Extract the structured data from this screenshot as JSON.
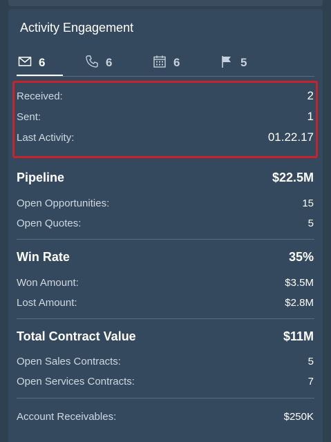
{
  "card": {
    "title": "Activity Engagement",
    "tabs": [
      {
        "icon": "envelope-icon",
        "count": "6"
      },
      {
        "icon": "phone-icon",
        "count": "6"
      },
      {
        "icon": "calendar-icon",
        "count": "6"
      },
      {
        "icon": "flag-icon",
        "count": "5"
      }
    ],
    "email_stats": {
      "received_label": "Received:",
      "received_value": "2",
      "sent_label": "Sent:",
      "sent_value": "1",
      "last_activity_label": "Last Activity:",
      "last_activity_value": "01.22.17"
    },
    "pipeline": {
      "title": "Pipeline",
      "total": "$22.5M",
      "rows": [
        {
          "label": "Open Opportunities:",
          "value": "15"
        },
        {
          "label": "Open Quotes:",
          "value": "5"
        }
      ]
    },
    "win_rate": {
      "title": "Win Rate",
      "total": "35%",
      "rows": [
        {
          "label": "Won Amount:",
          "value": "$3.5M"
        },
        {
          "label": "Lost Amount:",
          "value": "$2.8M"
        }
      ]
    },
    "contract_value": {
      "title": "Total Contract Value",
      "total": "$11M",
      "rows": [
        {
          "label": "Open Sales Contracts:",
          "value": "5"
        },
        {
          "label": "Open Services Contracts:",
          "value": "7"
        }
      ]
    },
    "receivables": {
      "label": "Account Receivables:",
      "value": "$250K"
    }
  },
  "colors": {
    "background": "#2f4050",
    "card": "#34495d",
    "highlight_border": "#c8232c",
    "text": "#ffffff",
    "muted_text": "#cfd8e1"
  }
}
